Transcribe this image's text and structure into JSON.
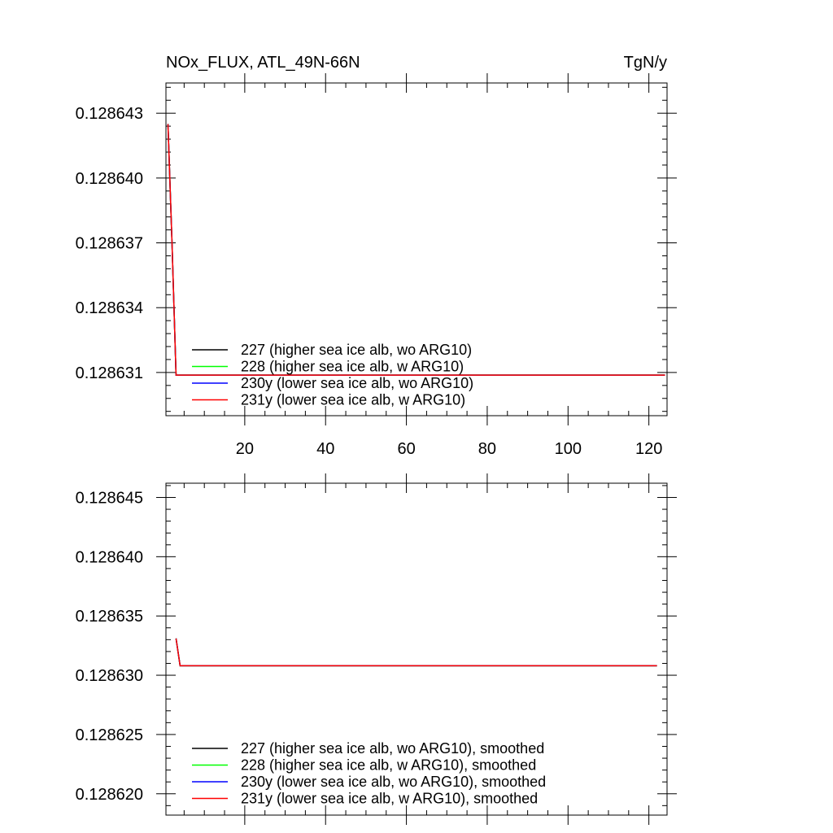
{
  "chart_data": [
    {
      "type": "line",
      "title": "NOx_FLUX, ATL_49N-66N",
      "units": "TgN/y",
      "xlabel": "",
      "ylabel": "",
      "xlim": [
        0.5,
        124.5
      ],
      "ylim": [
        0.128629,
        0.1286444
      ],
      "x_ticks": [
        20,
        40,
        60,
        80,
        100,
        120
      ],
      "x_tick_labels": [
        "20",
        "40",
        "60",
        "80",
        "100",
        "120"
      ],
      "y_ticks": [
        0.128631,
        0.128634,
        0.128637,
        0.12864,
        0.128643
      ],
      "y_tick_labels": [
        "0.128631",
        "0.128634",
        "0.128637",
        "0.128640",
        "0.128643"
      ],
      "legend_position": "bottom-left",
      "grid": false,
      "series": [
        {
          "name": "227 (higher sea ice alb, wo ARG10)",
          "color": "#000000",
          "x": [
            1,
            2,
            3,
            124
          ],
          "y": [
            0.1286425,
            0.128637,
            0.12863088,
            0.12863088
          ]
        },
        {
          "name": "228 (higher sea ice alb, w ARG10)",
          "color": "#00ff00",
          "x": [
            1,
            2,
            3,
            124
          ],
          "y": [
            0.1286425,
            0.128637,
            0.12863088,
            0.12863088
          ]
        },
        {
          "name": "230y (lower sea ice alb, wo ARG10)",
          "color": "#0000ff",
          "x": [
            1,
            2,
            3,
            124
          ],
          "y": [
            0.1286425,
            0.128637,
            0.12863088,
            0.12863088
          ]
        },
        {
          "name": "231y (lower sea ice alb, w ARG10)",
          "color": "#ff0000",
          "x": [
            1,
            2,
            3,
            124
          ],
          "y": [
            0.1286425,
            0.128637,
            0.12863088,
            0.12863088
          ]
        }
      ]
    },
    {
      "type": "line",
      "title": "",
      "xlabel": "",
      "ylabel": "",
      "xlim": [
        0.5,
        124.5
      ],
      "ylim": [
        0.1286182,
        0.1286462
      ],
      "x_ticks": [
        20,
        40,
        60,
        80,
        100,
        120
      ],
      "x_tick_labels": [],
      "y_ticks": [
        0.12862,
        0.128625,
        0.12863,
        0.128635,
        0.12864,
        0.128645
      ],
      "y_tick_labels": [
        "0.128620",
        "0.128625",
        "0.128630",
        "0.128635",
        "0.128640",
        "0.128645"
      ],
      "legend_position": "bottom-left",
      "grid": false,
      "series": [
        {
          "name": "227 (higher sea ice alb, wo ARG10), smoothed",
          "color": "#000000",
          "x": [
            3,
            4,
            122
          ],
          "y": [
            0.1286331,
            0.1286308,
            0.1286308
          ]
        },
        {
          "name": "228 (higher sea ice alb, w ARG10), smoothed",
          "color": "#00ff00",
          "x": [
            3,
            4,
            122
          ],
          "y": [
            0.1286331,
            0.1286308,
            0.1286308
          ]
        },
        {
          "name": "230y (lower sea ice alb, wo ARG10), smoothed",
          "color": "#0000ff",
          "x": [
            3,
            4,
            122
          ],
          "y": [
            0.1286331,
            0.1286308,
            0.1286308
          ]
        },
        {
          "name": "231y (lower sea ice alb, w ARG10), smoothed",
          "color": "#ff0000",
          "x": [
            3,
            4,
            122
          ],
          "y": [
            0.1286331,
            0.1286308,
            0.1286308
          ]
        }
      ]
    }
  ]
}
